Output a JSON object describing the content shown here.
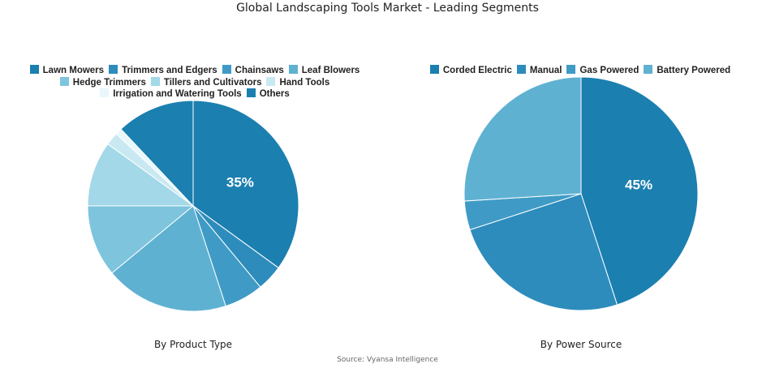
{
  "title": "Global Landscaping Tools Market - Leading Segments",
  "source": "Source: Vyansa Intelligence",
  "chart_data": [
    {
      "type": "pie",
      "title": "By Product Type",
      "legend_position": "top",
      "slices": [
        {
          "label": "Lawn Mowers",
          "value": 35,
          "color": "#1b7fb0",
          "show_label": true
        },
        {
          "label": "Trimmers and Edgers",
          "value": 4,
          "color": "#2d8cbc"
        },
        {
          "label": "Chainsaws",
          "value": 6,
          "color": "#3f9bc6"
        },
        {
          "label": "Leaf Blowers",
          "value": 19,
          "color": "#5fb1d2"
        },
        {
          "label": "Hedge Trimmers",
          "value": 11,
          "color": "#7ec4dd"
        },
        {
          "label": "Tillers and Cultivators",
          "value": 10,
          "color": "#a2d8e8"
        },
        {
          "label": "Hand Tools",
          "value": 2,
          "color": "#c9e9f2"
        },
        {
          "label": "Irrigation and Watering Tools",
          "value": 1,
          "color": "#e8f7fb"
        },
        {
          "label": "Others",
          "value": 12,
          "color": "#1b7fb0"
        }
      ]
    },
    {
      "type": "pie",
      "title": "By Power Source",
      "legend_position": "top",
      "slices": [
        {
          "label": "Corded Electric",
          "value": 45,
          "color": "#1b7fb0",
          "show_label": true
        },
        {
          "label": "Manual",
          "value": 25,
          "color": "#2d8cbc"
        },
        {
          "label": "Gas Powered",
          "value": 4,
          "color": "#3f9bc6"
        },
        {
          "label": "Battery Powered",
          "value": 26,
          "color": "#5fb1d2"
        }
      ]
    }
  ]
}
